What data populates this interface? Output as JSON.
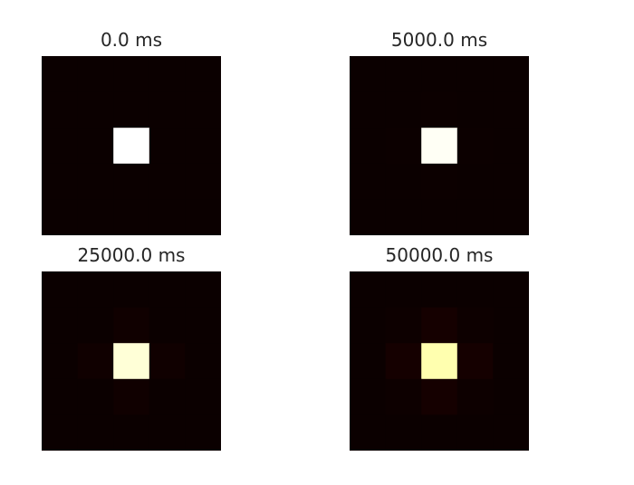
{
  "chart_data": [
    {
      "type": "heatmap",
      "title": "0.0 ms",
      "grid_size": 5,
      "colormap": "hot",
      "values": [
        [
          0.0,
          0.0,
          0.0,
          0.0,
          0.0
        ],
        [
          0.0,
          0.0,
          0.0,
          0.0,
          0.0
        ],
        [
          0.0,
          0.0,
          1.0,
          0.0,
          0.0
        ],
        [
          0.0,
          0.0,
          0.0,
          0.0,
          0.0
        ],
        [
          0.0,
          0.0,
          0.0,
          0.0,
          0.0
        ]
      ]
    },
    {
      "type": "heatmap",
      "title": "5000.0 ms",
      "grid_size": 5,
      "colormap": "hot",
      "values": [
        [
          0.0,
          0.0,
          0.0,
          0.0,
          0.0
        ],
        [
          0.0,
          0.0,
          0.002,
          0.0,
          0.0
        ],
        [
          0.0,
          0.002,
          0.99,
          0.002,
          0.0
        ],
        [
          0.0,
          0.0,
          0.002,
          0.0,
          0.0
        ],
        [
          0.0,
          0.0,
          0.0,
          0.0,
          0.0
        ]
      ]
    },
    {
      "type": "heatmap",
      "title": "25000.0 ms",
      "grid_size": 5,
      "colormap": "hot",
      "values": [
        [
          0.0,
          0.0,
          0.0,
          0.0,
          0.0
        ],
        [
          0.0,
          0.0,
          0.008,
          0.0,
          0.0
        ],
        [
          0.0,
          0.008,
          0.96,
          0.008,
          0.0
        ],
        [
          0.0,
          0.0,
          0.008,
          0.0,
          0.0
        ],
        [
          0.0,
          0.0,
          0.0,
          0.0,
          0.0
        ]
      ]
    },
    {
      "type": "heatmap",
      "title": "50000.0 ms",
      "grid_size": 5,
      "colormap": "hot",
      "values": [
        [
          0.0,
          0.0,
          0.0,
          0.0,
          0.0
        ],
        [
          0.0,
          0.003,
          0.015,
          0.003,
          0.0
        ],
        [
          0.0,
          0.015,
          0.92,
          0.015,
          0.0
        ],
        [
          0.0,
          0.003,
          0.015,
          0.003,
          0.0
        ],
        [
          0.0,
          0.0,
          0.0,
          0.0,
          0.0
        ]
      ]
    }
  ]
}
